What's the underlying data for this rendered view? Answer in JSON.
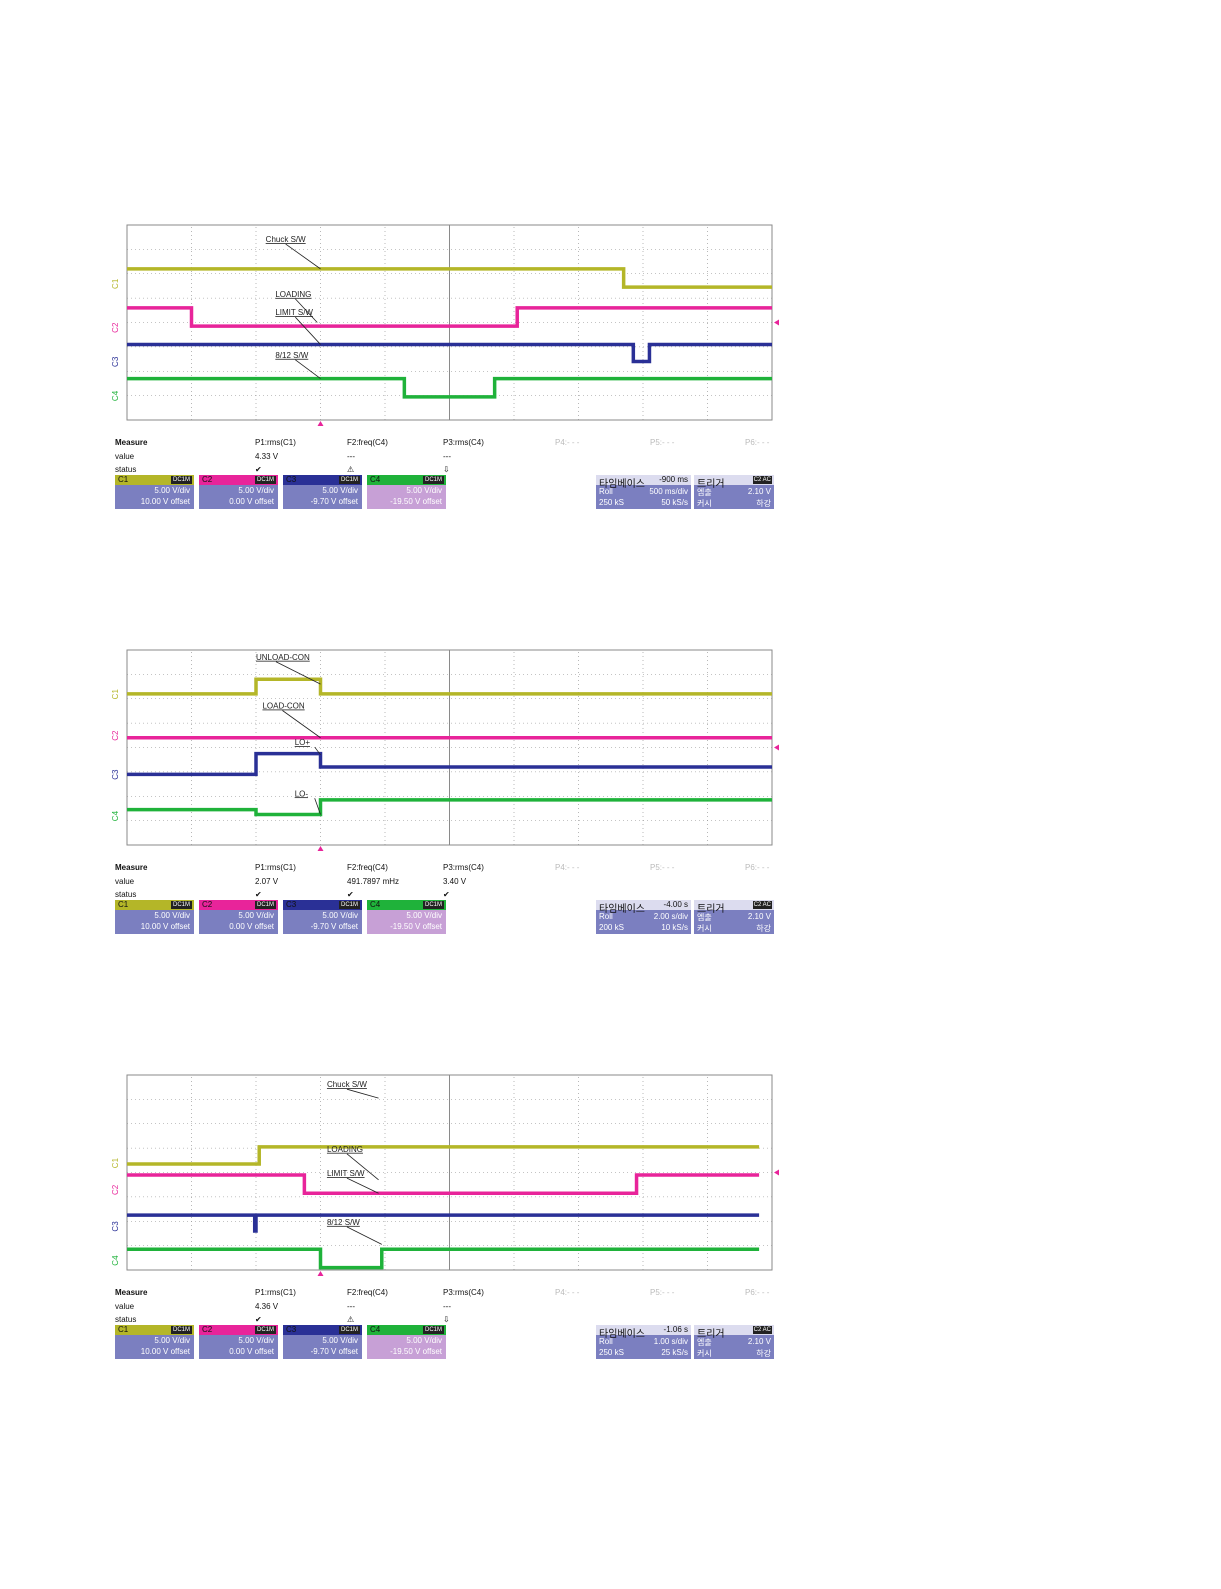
{
  "colors": {
    "c1": "#b4b628",
    "c2": "#e8249a",
    "c3": "#2a3096",
    "c4": "#1fb23a",
    "grid": "#8a8a8a",
    "panel": "#7b7fc0",
    "panel_light": "#c7a0d6"
  },
  "chart_data": [
    {
      "type": "line",
      "x_divisions": 10,
      "y_divisions": 8,
      "channel_labels": [
        "C1",
        "C2",
        "C3",
        "C4"
      ],
      "series": [
        {
          "name": "Chuck S/W",
          "channel": "C1",
          "x": [
            0,
            7.7,
            7.7,
            10
          ],
          "y": [
            6.2,
            6.2,
            5.45,
            5.45
          ]
        },
        {
          "name": "LOADING",
          "channel": "C2",
          "x": [
            0,
            1,
            1,
            6.05,
            6.05,
            10
          ],
          "y": [
            4.6,
            4.6,
            3.85,
            3.85,
            4.6,
            4.6
          ]
        },
        {
          "name": "LIMIT S/W",
          "channel": "C3",
          "x": [
            0,
            7.85,
            7.85,
            8.1,
            8.1,
            10
          ],
          "y": [
            3.1,
            3.1,
            2.4,
            2.4,
            3.1,
            3.1
          ]
        },
        {
          "name": "8/12 S/W",
          "channel": "C4",
          "x": [
            0,
            4.3,
            4.3,
            5.7,
            5.7,
            10
          ],
          "y": [
            1.7,
            1.7,
            0.95,
            0.95,
            1.7,
            1.7
          ]
        }
      ],
      "annotations": [
        {
          "text": "Chuck S/W"
        },
        {
          "text": "LOADING"
        },
        {
          "text": "LIMIT S/W"
        },
        {
          "text": "8/12 S/W"
        }
      ],
      "measure": {
        "header": [
          "Measure",
          "P1:rms(C1)",
          "F2:freq(C4)",
          "P3:rms(C4)",
          "P4:- - -",
          "P5:- - -",
          "P6:- - -"
        ],
        "value": [
          "value",
          "4.33 V",
          "---",
          "---"
        ],
        "status": [
          "status",
          "✔",
          "⚠",
          "⇩"
        ]
      },
      "channels": [
        {
          "name": "C1",
          "coupling": "DC1M",
          "vdiv": "5.00 V/div",
          "offset": "10.00 V offset"
        },
        {
          "name": "C2",
          "coupling": "DC1M",
          "vdiv": "5.00 V/div",
          "offset": "0.00 V offset"
        },
        {
          "name": "C3",
          "coupling": "DC1M",
          "vdiv": "5.00 V/div",
          "offset": "-9.70 V offset"
        },
        {
          "name": "C4",
          "coupling": "DC1M",
          "vdiv": "5.00 V/div",
          "offset": "-19.50 V offset"
        }
      ],
      "timebase": {
        "title": "타임베이스",
        "delay": "-900 ms",
        "mode": "Roll",
        "tdiv": "500 ms/div",
        "samples": "250 kS",
        "rate": "50 kS/s"
      },
      "trigger": {
        "title": "트리거",
        "badge": "C2 AC",
        "k1": "엠출",
        "v1": "2.10 V",
        "k2": "커시",
        "v2": "하강"
      }
    },
    {
      "type": "line",
      "x_divisions": 10,
      "y_divisions": 8,
      "channel_labels": [
        "C1",
        "C2",
        "C3",
        "C4"
      ],
      "series": [
        {
          "name": "UNLOAD-CON",
          "channel": "C1",
          "x": [
            0,
            2,
            2,
            3,
            3,
            10
          ],
          "y": [
            6.2,
            6.2,
            6.8,
            6.8,
            6.2,
            6.2
          ]
        },
        {
          "name": "LOAD-CON",
          "channel": "C2",
          "x": [
            0,
            10
          ],
          "y": [
            4.4,
            4.4
          ]
        },
        {
          "name": "LO+",
          "channel": "C3",
          "x": [
            0,
            2,
            2,
            3,
            3,
            10
          ],
          "y": [
            2.9,
            2.9,
            3.75,
            3.75,
            3.2,
            3.2
          ]
        },
        {
          "name": "LO-",
          "channel": "C4",
          "x": [
            0,
            2,
            2,
            3,
            3,
            10
          ],
          "y": [
            1.45,
            1.45,
            1.25,
            1.25,
            1.85,
            1.85
          ]
        }
      ],
      "annotations": [
        {
          "text": "UNLOAD-CON"
        },
        {
          "text": "LOAD-CON"
        },
        {
          "text": "LO+"
        },
        {
          "text": "LO-"
        }
      ],
      "measure": {
        "header": [
          "Measure",
          "P1:rms(C1)",
          "F2:freq(C4)",
          "P3:rms(C4)",
          "P4:- - -",
          "P5:- - -",
          "P6:- - -"
        ],
        "value": [
          "value",
          "2.07 V",
          "491.7897 mHz",
          "3.40 V"
        ],
        "status": [
          "status",
          "✔",
          "✔",
          "✔"
        ]
      },
      "channels": [
        {
          "name": "C1",
          "coupling": "DC1M",
          "vdiv": "5.00 V/div",
          "offset": "10.00 V offset"
        },
        {
          "name": "C2",
          "coupling": "DC1M",
          "vdiv": "5.00 V/div",
          "offset": "0.00 V offset"
        },
        {
          "name": "C3",
          "coupling": "DC1M",
          "vdiv": "5.00 V/div",
          "offset": "-9.70 V offset"
        },
        {
          "name": "C4",
          "coupling": "DC1M",
          "vdiv": "5.00 V/div",
          "offset": "-19.50 V offset"
        }
      ],
      "timebase": {
        "title": "타임베이스",
        "delay": "-4.00 s",
        "mode": "Roll",
        "tdiv": "2.00 s/div",
        "samples": "200 kS",
        "rate": "10 kS/s"
      },
      "trigger": {
        "title": "트리거",
        "badge": "C2 AC",
        "k1": "엠출",
        "v1": "2.10 V",
        "k2": "커시",
        "v2": "하강"
      }
    },
    {
      "type": "line",
      "x_divisions": 10,
      "y_divisions": 8,
      "channel_labels": [
        "C1",
        "C2",
        "C3",
        "C4"
      ],
      "series": [
        {
          "name": "Chuck S/W",
          "channel": "C1",
          "x": [
            0,
            2.05,
            2.05,
            9.8
          ],
          "y": [
            4.35,
            4.35,
            5.05,
            5.05
          ]
        },
        {
          "name": "LOADING",
          "channel": "C2",
          "x": [
            0,
            2.75,
            2.75,
            7.9,
            7.9,
            9.8
          ],
          "y": [
            3.9,
            3.9,
            3.15,
            3.15,
            3.9,
            3.9
          ]
        },
        {
          "name": "LIMIT S/W",
          "channel": "C3",
          "x": [
            0,
            1.98,
            1.98,
            2.0,
            2.0,
            9.8
          ],
          "y": [
            2.25,
            2.25,
            1.6,
            1.6,
            2.25,
            2.25
          ]
        },
        {
          "name": "8/12 S/W",
          "channel": "C4",
          "x": [
            0,
            3.0,
            3.0,
            3.95,
            3.95,
            9.8
          ],
          "y": [
            0.85,
            0.85,
            0.1,
            0.1,
            0.85,
            0.85
          ]
        }
      ],
      "annotations": [
        {
          "text": "Chuck S/W"
        },
        {
          "text": "LOADING"
        },
        {
          "text": "LIMIT S/W"
        },
        {
          "text": "8/12 S/W"
        }
      ],
      "measure": {
        "header": [
          "Measure",
          "P1:rms(C1)",
          "F2:freq(C4)",
          "P3:rms(C4)",
          "P4:- - -",
          "P5:- - -",
          "P6:- - -"
        ],
        "value": [
          "value",
          "4.36 V",
          "---",
          "---"
        ],
        "status": [
          "status",
          "✔",
          "⚠",
          "⇩"
        ]
      },
      "channels": [
        {
          "name": "C1",
          "coupling": "DC1M",
          "vdiv": "5.00 V/div",
          "offset": "10.00 V offset"
        },
        {
          "name": "C2",
          "coupling": "DC1M",
          "vdiv": "5.00 V/div",
          "offset": "0.00 V offset"
        },
        {
          "name": "C3",
          "coupling": "DC1M",
          "vdiv": "5.00 V/div",
          "offset": "-9.70 V offset"
        },
        {
          "name": "C4",
          "coupling": "DC1M",
          "vdiv": "5.00 V/div",
          "offset": "-19.50 V offset"
        }
      ],
      "timebase": {
        "title": "타임베이스",
        "delay": "-1.06 s",
        "mode": "Roll",
        "tdiv": "1.00 s/div",
        "samples": "250 kS",
        "rate": "25 kS/s"
      },
      "trigger": {
        "title": "트리거",
        "badge": "C2 AC",
        "k1": "엠출",
        "v1": "2.10 V",
        "k2": "커시",
        "v2": "하강"
      }
    }
  ]
}
